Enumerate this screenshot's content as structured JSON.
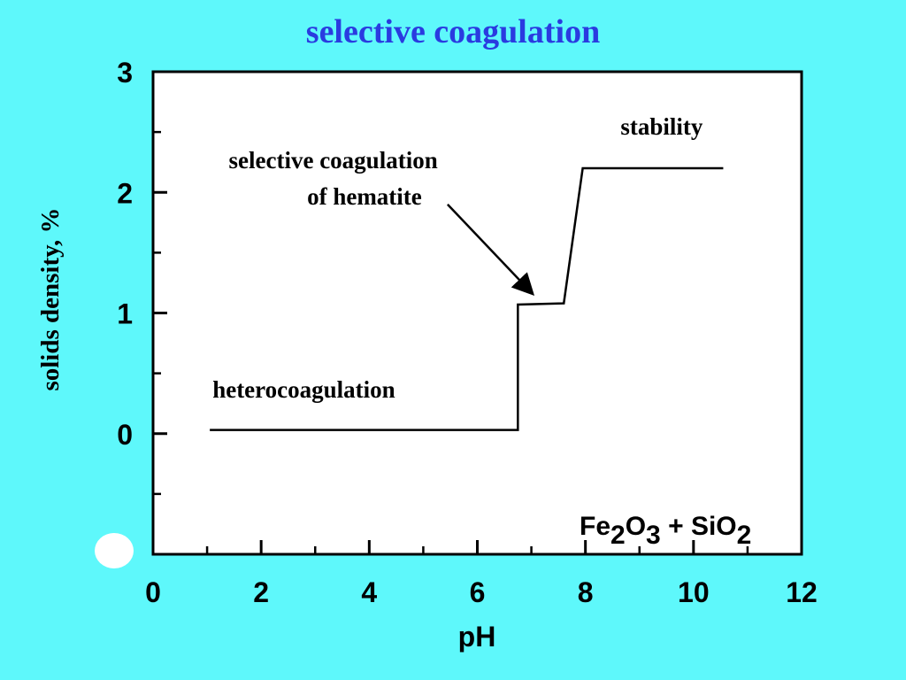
{
  "chart_data": {
    "type": "line",
    "title": "selective coagulation",
    "xlabel": "pH",
    "ylabel": "solids density, %",
    "xlim": [
      0,
      12
    ],
    "ylim": [
      -1,
      3
    ],
    "x_ticks": [
      0,
      2,
      4,
      6,
      8,
      10,
      12
    ],
    "y_ticks": [
      0,
      1,
      2,
      3
    ],
    "grid": false,
    "series": [
      {
        "x": [
          1.05,
          6.75,
          6.75,
          7.6,
          7.95,
          10.55
        ],
        "y": [
          0.03,
          0.03,
          1.07,
          1.08,
          2.2,
          2.2
        ]
      }
    ],
    "annotations": [
      {
        "id": "heterocoagulation",
        "text": "heterocoagulation",
        "x": 1.1,
        "y": 0.3
      },
      {
        "id": "selective-line1",
        "text": "selective coagulation",
        "x": 1.4,
        "y": 2.2
      },
      {
        "id": "selective-line2",
        "text": "of hematite",
        "x": 2.85,
        "y": 1.9
      },
      {
        "id": "stability",
        "text": "stability",
        "x": 8.65,
        "y": 2.48
      }
    ],
    "arrow": {
      "from": [
        5.45,
        1.9
      ],
      "to": [
        7.0,
        1.17
      ]
    },
    "system_label": {
      "parts": [
        "Fe",
        "2",
        "O",
        "3",
        " + ",
        "SiO",
        "2"
      ]
    },
    "colors": {
      "background": "#5ef8fb",
      "plot_background": "#ffffff",
      "title": "#2a3be0",
      "line": "#000000"
    }
  }
}
